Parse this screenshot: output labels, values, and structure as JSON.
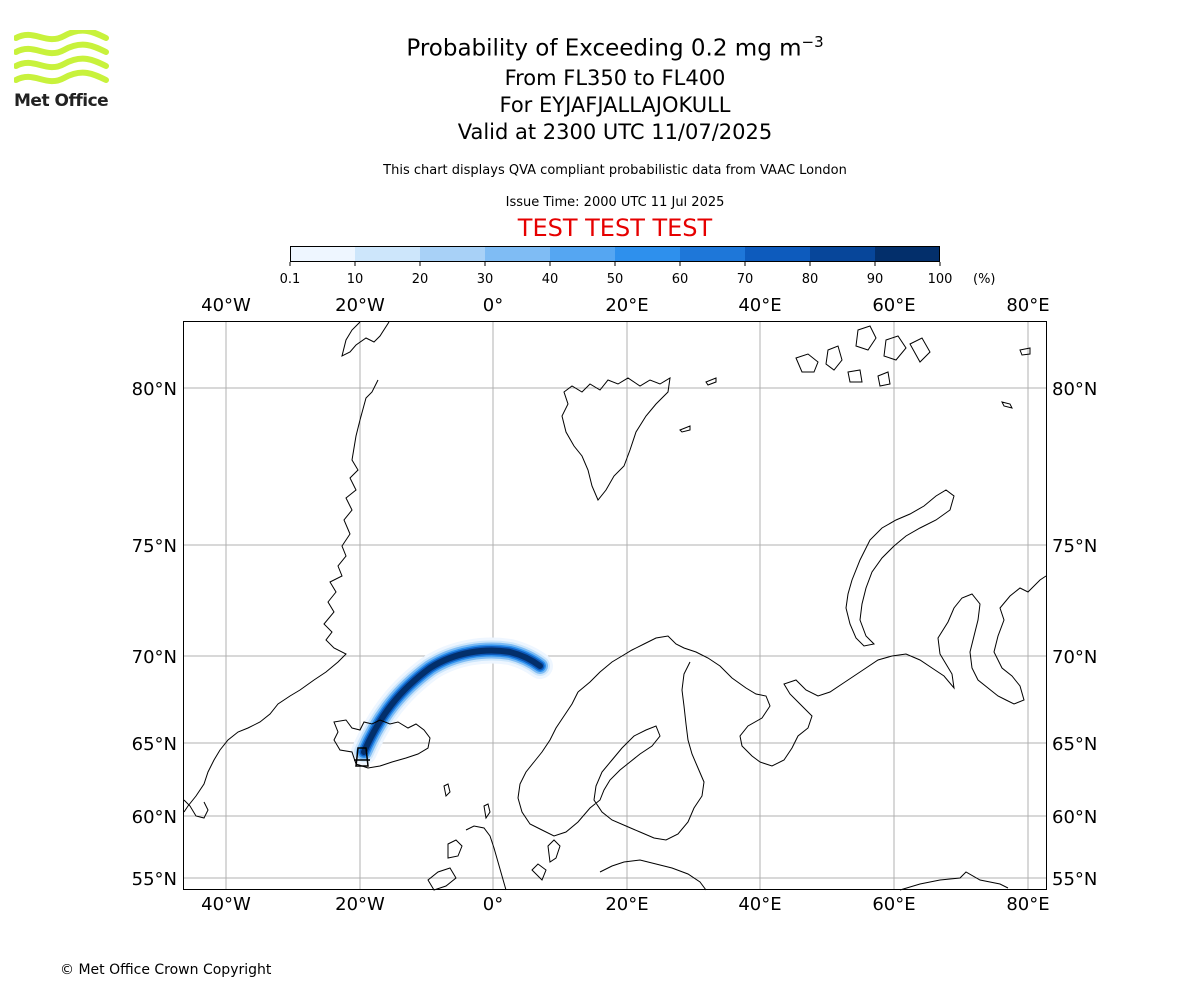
{
  "brand": {
    "name": "Met Office",
    "logo_color": "#c8f23c"
  },
  "title": {
    "prefix": "Probability of Exceeding 0.2 mg m",
    "superscript": "−3",
    "levels": "From FL350 to FL400",
    "volcano": "For EYJAFJALLAJOKULL",
    "valid": "Valid at 2300 UTC 11/07/2025",
    "description": "This chart displays QVA compliant probabilistic data from VAAC London",
    "issue": "Issue Time: 2000 UTC 11 Jul 2025",
    "test_banner": "TEST TEST TEST"
  },
  "colorbar": {
    "ticks": [
      "0.1",
      "10",
      "20",
      "30",
      "40",
      "50",
      "60",
      "70",
      "80",
      "90",
      "100"
    ],
    "unit": "(%)",
    "colors": [
      "#eef6ff",
      "#cde6fb",
      "#a8d1f7",
      "#7fbcf4",
      "#55a6f2",
      "#2e90ed",
      "#1e77d9",
      "#0d5bbd",
      "#07469a",
      "#032f6b"
    ]
  },
  "map": {
    "lon_labels": [
      "40°W",
      "20°W",
      "0°",
      "20°E",
      "40°E",
      "60°E",
      "80°E"
    ],
    "lat_labels": [
      "80°N",
      "75°N",
      "70°N",
      "65°N",
      "60°N",
      "55°N"
    ],
    "grid_color": "#b0b0b0",
    "coast_color": "#000000",
    "volcano": "EYJAFJALLAJOKULL"
  },
  "footer": {
    "copyright": "© Met Office Crown Copyright"
  }
}
